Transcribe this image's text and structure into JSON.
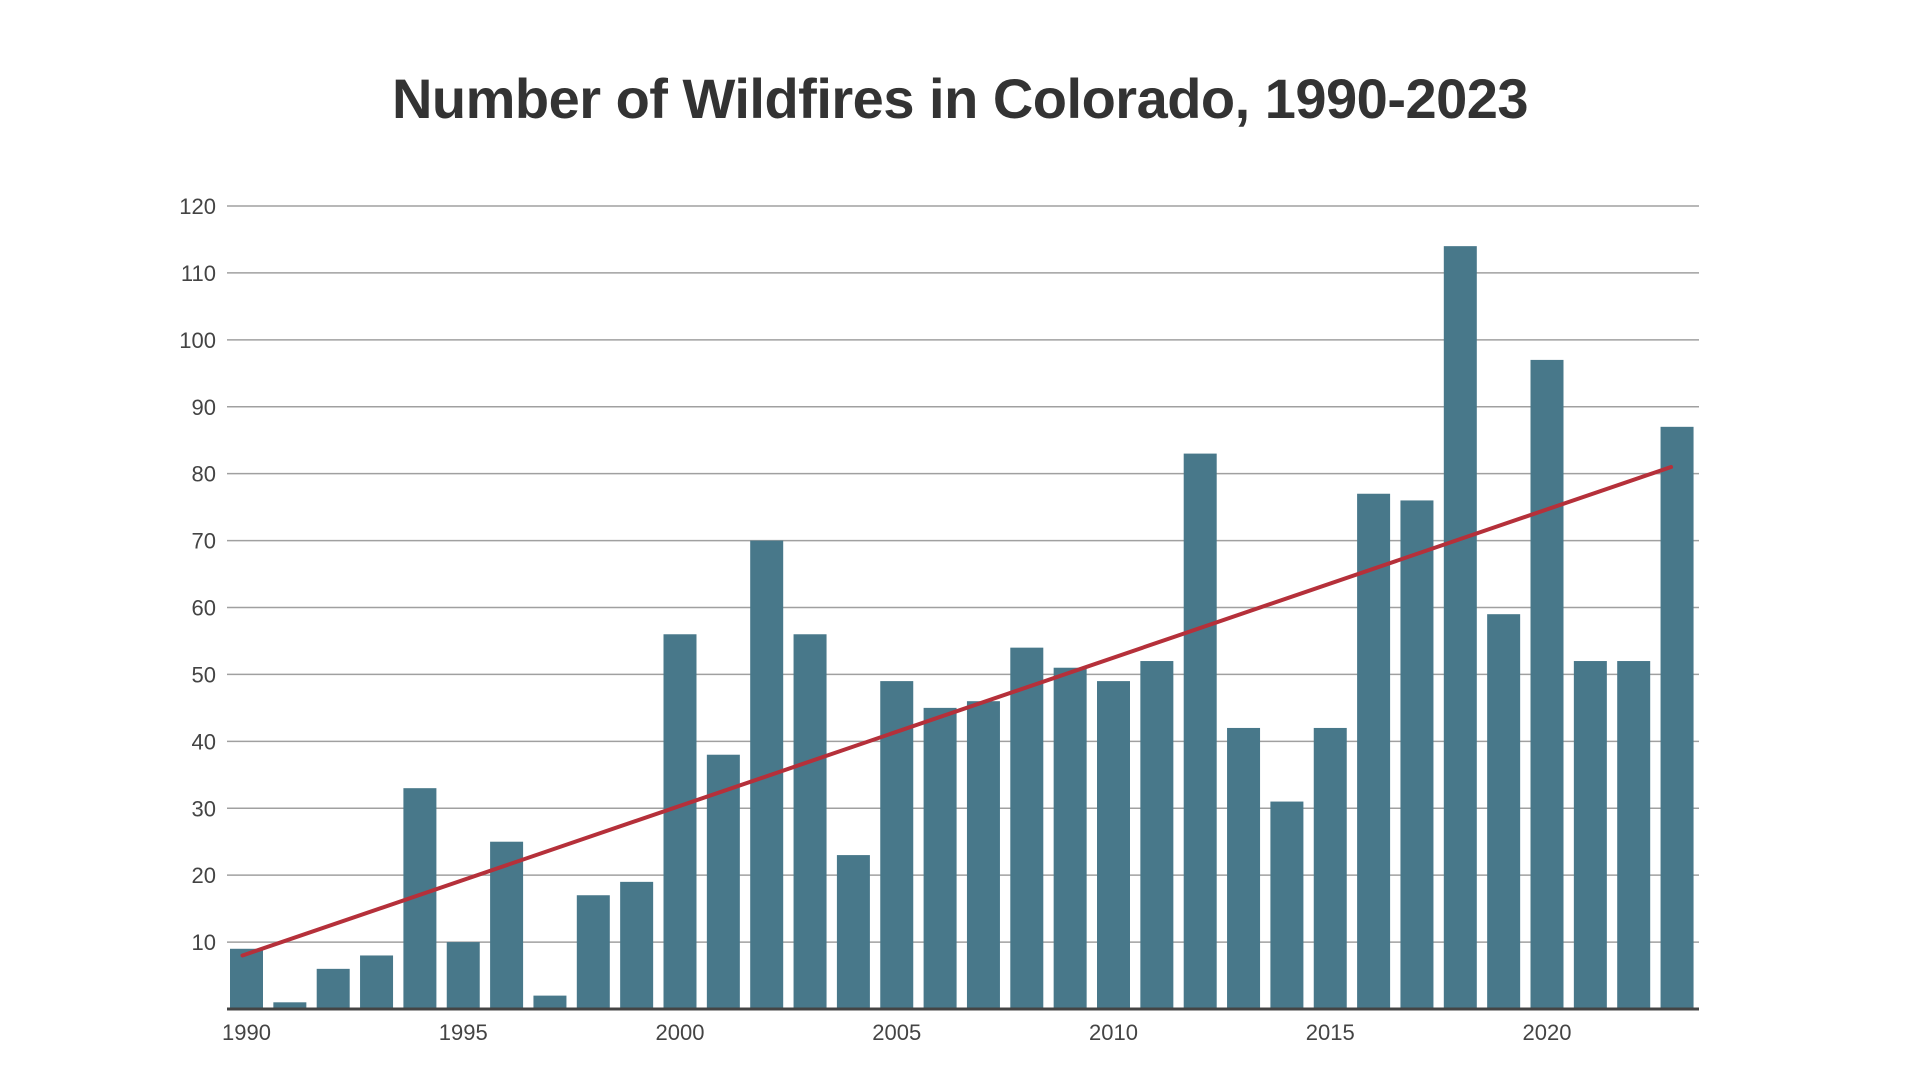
{
  "chart_data": {
    "type": "bar",
    "title": "Number of Wildfires in Colorado, 1990-2023",
    "xlabel": "",
    "ylabel": "",
    "ylim": [
      0,
      120
    ],
    "yticks": [
      10,
      20,
      30,
      40,
      50,
      60,
      70,
      80,
      90,
      100,
      110,
      120
    ],
    "xticks": [
      1990,
      1995,
      2000,
      2005,
      2010,
      2015,
      2020
    ],
    "grid": true,
    "categories": [
      1990,
      1991,
      1992,
      1993,
      1994,
      1995,
      1996,
      1997,
      1998,
      1999,
      2000,
      2001,
      2002,
      2003,
      2004,
      2005,
      2006,
      2007,
      2008,
      2009,
      2010,
      2011,
      2012,
      2013,
      2014,
      2015,
      2016,
      2017,
      2018,
      2019,
      2020,
      2021,
      2022,
      2023
    ],
    "values": [
      9,
      1,
      6,
      8,
      33,
      10,
      25,
      2,
      17,
      19,
      56,
      38,
      70,
      56,
      23,
      49,
      45,
      46,
      54,
      51,
      49,
      52,
      83,
      42,
      31,
      42,
      77,
      76,
      114,
      59,
      97,
      52,
      52,
      87
    ],
    "trendline": {
      "x": [
        1990,
        2023
      ],
      "y": [
        8,
        81
      ]
    },
    "colors": {
      "bar": "#48788a",
      "trendline": "#b5303a",
      "grid": "#a0a0a0",
      "text": "#333333"
    }
  }
}
